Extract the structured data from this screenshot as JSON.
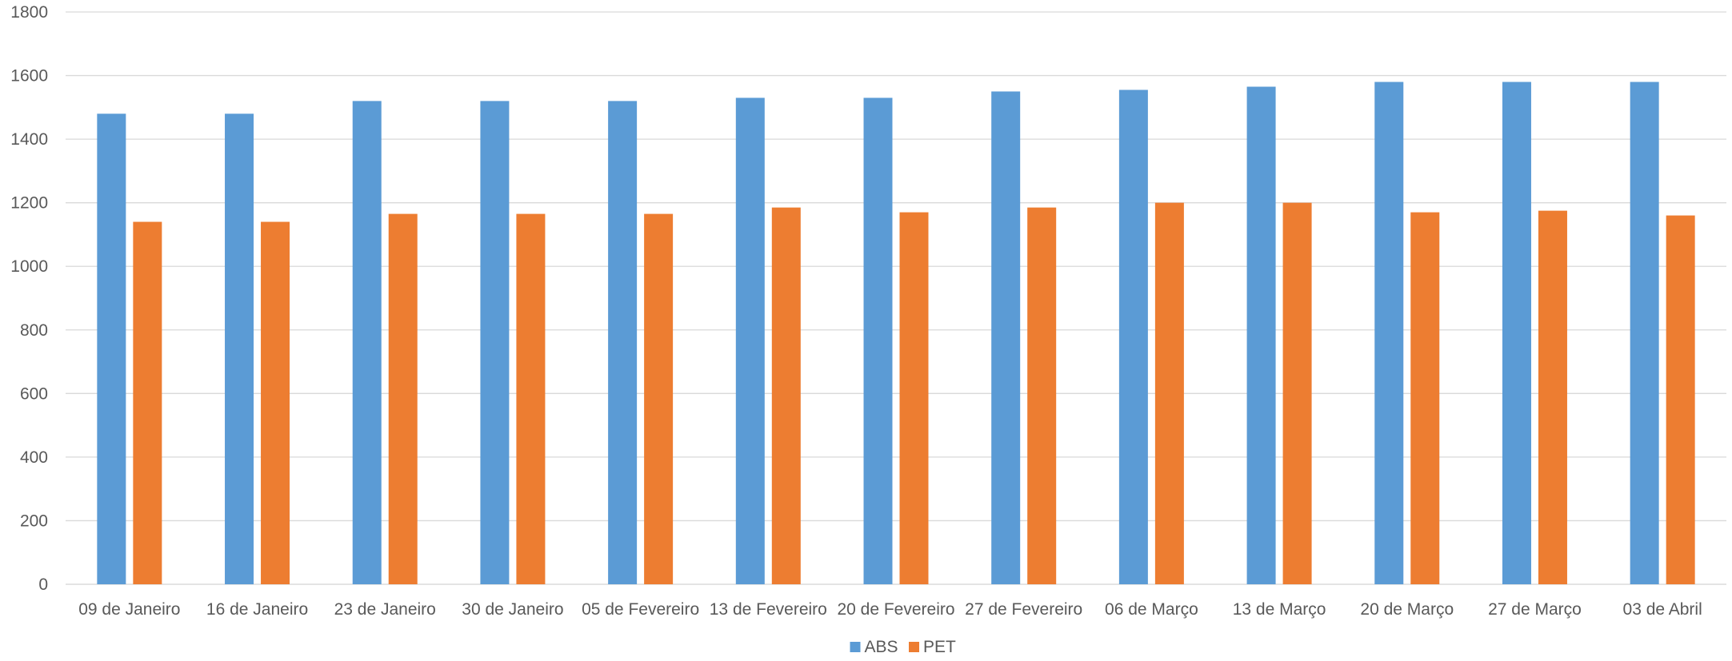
{
  "chart_data": {
    "type": "bar",
    "title": "",
    "xlabel": "",
    "ylabel": "",
    "ylim": [
      0,
      1800
    ],
    "y_ticks": [
      0,
      200,
      400,
      600,
      800,
      1000,
      1200,
      1400,
      1600,
      1800
    ],
    "grid": true,
    "legend_position": "bottom",
    "categories": [
      "09 de Janeiro",
      "16 de Janeiro",
      "23 de Janeiro",
      "30 de Janeiro",
      "05 de Fevereiro",
      "13 de Fevereiro",
      "20 de Fevereiro",
      "27 de Fevereiro",
      "06 de Março",
      "13 de Março",
      "20 de Março",
      "27 de Março",
      "03 de Abril"
    ],
    "series": [
      {
        "name": "ABS",
        "color": "#5B9BD5",
        "values": [
          1480,
          1480,
          1520,
          1520,
          1520,
          1530,
          1530,
          1550,
          1555,
          1565,
          1580,
          1580,
          1580
        ]
      },
      {
        "name": "PET",
        "color": "#ED7D31",
        "values": [
          1140,
          1140,
          1165,
          1165,
          1165,
          1185,
          1170,
          1185,
          1200,
          1200,
          1170,
          1175,
          1160
        ]
      }
    ]
  }
}
